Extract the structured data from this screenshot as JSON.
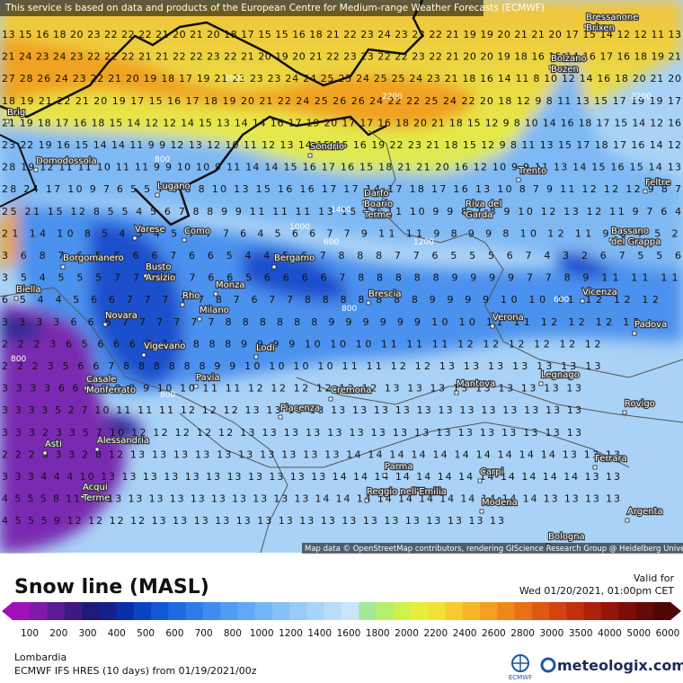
{
  "banner": "This service is based on data and products of the European Centre for Medium-range Weather Forecasts (ECMWF)",
  "attribution": "Map data © OpenStreetMap contributors, rendering GIScience Research Group @ Heidelberg University",
  "grid_rows": [
    "13 15 16 18 20 23 22 22 22 21 20 21 20 18 17 15 15 16 18 21 22 23 24 23 23 22 21 19 19 20 21 21 20 17 15 14 12 12 11 13",
    "21 24 23 24 23 22 22 22 21 21 22 22 23 22 21 20 19 20 21 22 23 23 22 22 23 22 21 20 20 19 18 16 15 14 16 17 16 18 19 21",
    "27 28 26 24 23 22 21 20 19 18 17 19 21 23 23 23 24 24 25 25 24 25 25 24 23 21 18 16 14 11 8 10 12 14 16 18 20 21 20",
    "18 19 21 22 21 20 19 17 15 16 17 18 19 20 21 22 24 25 26 26 24 22 22 25 24 22 20 18 12 9 8 11 13 15 17 19 19 17",
    "21 19 18 17 16 18 15 14 12 12 14 15 13 14 14 16 17 19 20 17 17 16 18 20 21 18 15 12 9 8 10 14 16 18 17 15 14 12 16",
    "23 22 19 16 15 14 14 11 9 9 12 13 12 10 11 12 13 14 15 15 16 19 22 23 21 18 15 12 9 8 11 13 15 17 18 17 16 14 12",
    "28 19 12 11 11 10 11 11 9 9 10 10 9 11 14 14 15 16 17 16 15 18 21 21 20 16 12 10 9 9 11 13 14 15 16 15 14 13",
    "28 24 17 10 9 7 6 5 5 7 8 8 8 10 13 15 16 16 17 17 14 17 18 17 16 13 10 8 7 9 11 12 12 12 9 8 7",
    "25 21 15 12 8 5 5 4 5 6 7 8 8 9 9 11 11 11 13 15 13 11 10 9 9 8 7 8 9 10 12 13 12 11 9 7 6 4",
    "21 14 10 8 5 4 5 4 5 7 7 7 6 4 5 6 6 7 7 9 11 11 9 8 9 9 8 10 12 11 9 8 7 5 2",
    "3 6 8 7 6 5 5 6 6 7 6 6 5 4 4 5 6 7 8 8 8 7 7 6 5 5 5 6 7 4 3 2 6 7 5 5 6",
    "3 5 4 5 5 5 7 7 7 7 7 6 6 5 6 6 6 6 7 8 8 8 8 8 9 9 9 9 7 7 8 9 11 11 11",
    "6 5 4 4 5 6 6 7 7 7 7 7 8 7 6 7 7 8 8 8 8 8 8 8 9 9 9 9 10 10 11 12 12 12",
    "3 3 3 3 6 6 6 7 7 7 7 7 7 8 8 8 8 8 8 9 9 9 9 9 9 10 10 11 11 12 12 12 12",
    "2 2 2 3 6 5 6 6 6 7 7 7 8 8 8 9 9 9 9 10 10 10 11 11 11 12 12 12 12 12 12",
    "2 2 2 3 5 6 6 7 8 8 8 8 8 8 9 9 10 10 10 10 11 11 12 12 13 13 13 13 13 13 13",
    "3 3 3 3 6 6 8 9 9 9 9 10 10 11 11 12 12 12 12 12 12 13 13 13 13 13 13 13 13 13",
    "3 3 3 3 5 2 7 10 11 11 11 12 12 12 13 13 13 13 13 13 13 13 13 13 13 13 13 13 13 13",
    "3 3 3 2 3 3 5 7 10 12 12 12 12 12 13 13 13 13 13 13 13 13 13 13 13 13 13 13 13 13",
    "2 2 2 3 3 3 2 8 12 13 13 13 13 13 13 13 13 13 13 14 14 14 14 14 14 14 14 14 14 13 13 13",
    "3 3 3 4 4 4 10 13 13 13 13 13 13 13 13 13 13 13 14 14 14 14 14 14 14 14 14 14 14 14 13 13",
    "4 5 5 5 8 11 13 13 13 13 13 13 13 13 13 13 13 14 14 14 14 14 14 14 14 14 14 14 13 13 13 13",
    "4 5 5 5 9 12 12 12 12 13 13 13 13 13 13 13 13 13 13 13 13 13 13 13 13 13"
  ],
  "cities": [
    {
      "lines": [
        "Bressanone",
        "Brixen"
      ]
    },
    {
      "lines": [
        "Bolzano",
        "Bozen"
      ]
    },
    {
      "lines": [
        "Brig"
      ]
    },
    {
      "lines": [
        "Domodossola"
      ]
    },
    {
      "lines": [
        "Sondrio"
      ]
    },
    {
      "lines": [
        "Trento"
      ]
    },
    {
      "lines": [
        "Feltre"
      ]
    },
    {
      "lines": [
        "Lugano"
      ]
    },
    {
      "lines": [
        "Darfo",
        "Boario",
        "Terme"
      ]
    },
    {
      "lines": [
        "Riva del",
        "Garda"
      ]
    },
    {
      "lines": [
        "Varese"
      ]
    },
    {
      "lines": [
        "Como"
      ]
    },
    {
      "lines": [
        "Bassano",
        "del Grappa"
      ]
    },
    {
      "lines": [
        "Borgomanero"
      ]
    },
    {
      "lines": [
        "Bergamo"
      ]
    },
    {
      "lines": [
        "Busto",
        "Arsizio"
      ]
    },
    {
      "lines": [
        "Biella"
      ]
    },
    {
      "lines": [
        "Monza"
      ]
    },
    {
      "lines": [
        "Rho"
      ]
    },
    {
      "lines": [
        "Brescia"
      ]
    },
    {
      "lines": [
        "Vicenza"
      ]
    },
    {
      "lines": [
        "Novara"
      ]
    },
    {
      "lines": [
        "Milano"
      ]
    },
    {
      "lines": [
        "Verona"
      ]
    },
    {
      "lines": [
        "Padova"
      ]
    },
    {
      "lines": [
        "Vigevano"
      ]
    },
    {
      "lines": [
        "Lodi"
      ]
    },
    {
      "lines": [
        "Legnago"
      ]
    },
    {
      "lines": [
        "Casale",
        "Monferrato"
      ]
    },
    {
      "lines": [
        "Pavia"
      ]
    },
    {
      "lines": [
        "Mantova"
      ]
    },
    {
      "lines": [
        "Cremona"
      ]
    },
    {
      "lines": [
        "Rovigo"
      ]
    },
    {
      "lines": [
        "Piacenza"
      ]
    },
    {
      "lines": [
        "Alessandria"
      ]
    },
    {
      "lines": [
        "Asti"
      ]
    },
    {
      "lines": [
        "Ferrara"
      ]
    },
    {
      "lines": [
        "Parma"
      ]
    },
    {
      "lines": [
        "Carpi"
      ]
    },
    {
      "lines": [
        "Reggio nell'Emilia"
      ]
    },
    {
      "lines": [
        "Acqui",
        "Terme"
      ]
    },
    {
      "lines": [
        "Modena"
      ]
    },
    {
      "lines": [
        "Argenta"
      ]
    },
    {
      "lines": [
        "Bologna"
      ]
    }
  ],
  "contour_labels": [
    "800",
    "1000",
    "1400",
    "1200",
    "600",
    "800",
    "800",
    "600",
    "2200",
    "2200",
    "2000",
    "800"
  ],
  "legend": {
    "title": "Snow line (MASL)",
    "colors": [
      "#a011b8",
      "#7d1aa6",
      "#5a1c93",
      "#3c1a82",
      "#1e1a78",
      "#14208c",
      "#0a2fa8",
      "#0a44c4",
      "#1257d6",
      "#1e6ae0",
      "#2e7ce8",
      "#3f8cee",
      "#519bf2",
      "#62a8f4",
      "#74b5f6",
      "#86c1f7",
      "#97cbf8",
      "#a8d4f9",
      "#b9ddf9",
      "#c9e6f9",
      "#a6e89a",
      "#b6ee6e",
      "#cdf24a",
      "#e4f03a",
      "#f2e233",
      "#f6cd2c",
      "#f6b726",
      "#f3a020",
      "#ee881b",
      "#e87017",
      "#df5813",
      "#d34210",
      "#c2300d",
      "#ad200b",
      "#951509",
      "#7c0d08",
      "#640a08",
      "#4e0707"
    ],
    "labels": [
      "100",
      "200",
      "300",
      "400",
      "500",
      "600",
      "700",
      "800",
      "1000",
      "1200",
      "1400",
      "1600",
      "1800",
      "2000",
      "2200",
      "2400",
      "2600",
      "2800",
      "3000",
      "3500",
      "4000",
      "5000",
      "6000"
    ]
  },
  "valid_label": "Valid for",
  "valid_time": "Wed 01/20/2021, 01:00pm CET",
  "region": "Lombardia",
  "model": "ECMWF IFS HRES (10 days) from 01/19/2021/00z",
  "ecmwf_logo": "ECMWF",
  "brand": "meteologix.com"
}
